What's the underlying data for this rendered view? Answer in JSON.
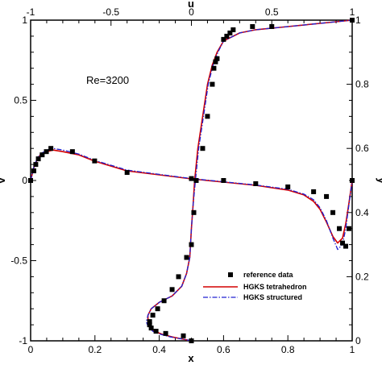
{
  "chart_data": {
    "type": "line",
    "annotation": "Re=3200",
    "axes": {
      "bottom": {
        "label": "x",
        "range": [
          0,
          1
        ],
        "ticks": [
          "0",
          "0.2",
          "0.4",
          "0.6",
          "0.8",
          "1"
        ],
        "tick_values": [
          0,
          0.2,
          0.4,
          0.6,
          0.8,
          1
        ]
      },
      "top": {
        "label": "u",
        "range": [
          -1,
          1
        ],
        "ticks": [
          "-1",
          "-0.5",
          "0",
          "0.5",
          "1"
        ],
        "tick_values": [
          -1,
          -0.5,
          0,
          0.5,
          1
        ]
      },
      "left": {
        "label": "v",
        "range": [
          -1,
          1
        ],
        "ticks": [
          "-1",
          "-0.5",
          "0",
          "0.5",
          "1"
        ],
        "tick_values": [
          -1,
          -0.5,
          0,
          0.5,
          1
        ]
      },
      "right": {
        "label": "y",
        "range": [
          0,
          1
        ],
        "ticks": [
          "0",
          "0.2",
          "0.4",
          "0.6",
          "0.8",
          "1"
        ],
        "tick_values": [
          0,
          0.2,
          0.4,
          0.6,
          0.8,
          1
        ]
      }
    },
    "legend": {
      "placement": "bottom-right",
      "entries": [
        "reference data",
        "HGKS tetrahedron",
        "HGKS structured"
      ]
    },
    "colors": {
      "tetra": "#d40000",
      "structured": "#2020d0",
      "reference": "#000000"
    },
    "series": [
      {
        "name": "reference data",
        "style": "marker",
        "group": "v_vs_x",
        "points": [
          [
            0.0,
            0.0
          ],
          [
            0.01,
            0.06
          ],
          [
            0.016,
            0.1
          ],
          [
            0.024,
            0.135
          ],
          [
            0.036,
            0.16
          ],
          [
            0.049,
            0.18
          ],
          [
            0.063,
            0.2
          ],
          [
            0.13,
            0.18
          ],
          [
            0.199,
            0.122
          ],
          [
            0.3,
            0.05
          ],
          [
            0.5,
            0.012
          ],
          [
            0.6,
            0.0
          ],
          [
            0.7,
            -0.02
          ],
          [
            0.8,
            -0.04
          ],
          [
            0.88,
            -0.07
          ],
          [
            0.92,
            -0.1
          ],
          [
            0.94,
            -0.2
          ],
          [
            0.96,
            -0.3
          ],
          [
            0.97,
            -0.39
          ],
          [
            0.98,
            -0.41
          ],
          [
            0.99,
            -0.3
          ],
          [
            1.0,
            0.0
          ]
        ]
      },
      {
        "name": "reference data",
        "style": "marker",
        "group": "u_vs_y",
        "points": [
          [
            0.0,
            0.0
          ],
          [
            -0.05,
            0.0156
          ],
          [
            -0.16,
            0.023
          ],
          [
            -0.22,
            0.03
          ],
          [
            -0.25,
            0.04
          ],
          [
            -0.26,
            0.05
          ],
          [
            -0.26,
            0.06
          ],
          [
            -0.24,
            0.08
          ],
          [
            -0.21,
            0.1
          ],
          [
            -0.17,
            0.125
          ],
          [
            -0.12,
            0.16
          ],
          [
            -0.08,
            0.2
          ],
          [
            -0.03,
            0.26
          ],
          [
            0.0,
            0.3
          ],
          [
            0.015,
            0.4
          ],
          [
            0.03,
            0.5
          ],
          [
            0.07,
            0.6
          ],
          [
            0.1,
            0.7
          ],
          [
            0.13,
            0.8
          ],
          [
            0.14,
            0.85
          ],
          [
            0.15,
            0.87
          ],
          [
            0.16,
            0.88
          ],
          [
            0.2,
            0.94
          ],
          [
            0.22,
            0.95
          ],
          [
            0.24,
            0.96
          ],
          [
            0.26,
            0.97
          ],
          [
            0.38,
            0.98
          ],
          [
            0.5,
            0.98
          ],
          [
            1.0,
            1.0
          ]
        ]
      },
      {
        "name": "HGKS tetrahedron",
        "style": "solid",
        "group": "v_vs_x",
        "points": [
          [
            0.0,
            0.0
          ],
          [
            0.01,
            0.08
          ],
          [
            0.02,
            0.13
          ],
          [
            0.03,
            0.16
          ],
          [
            0.05,
            0.18
          ],
          [
            0.07,
            0.19
          ],
          [
            0.1,
            0.18
          ],
          [
            0.15,
            0.16
          ],
          [
            0.2,
            0.12
          ],
          [
            0.3,
            0.06
          ],
          [
            0.4,
            0.035
          ],
          [
            0.5,
            0.01
          ],
          [
            0.6,
            -0.01
          ],
          [
            0.7,
            -0.03
          ],
          [
            0.8,
            -0.06
          ],
          [
            0.85,
            -0.09
          ],
          [
            0.88,
            -0.13
          ],
          [
            0.9,
            -0.18
          ],
          [
            0.92,
            -0.26
          ],
          [
            0.94,
            -0.35
          ],
          [
            0.955,
            -0.39
          ],
          [
            0.97,
            -0.36
          ],
          [
            0.98,
            -0.27
          ],
          [
            0.99,
            -0.14
          ],
          [
            1.0,
            0.0
          ]
        ]
      },
      {
        "name": "HGKS tetrahedron",
        "style": "solid",
        "group": "u_vs_y",
        "points": [
          [
            0.0,
            0.0
          ],
          [
            -0.05,
            0.005
          ],
          [
            -0.12,
            0.012
          ],
          [
            -0.18,
            0.02
          ],
          [
            -0.23,
            0.03
          ],
          [
            -0.26,
            0.045
          ],
          [
            -0.27,
            0.06
          ],
          [
            -0.27,
            0.08
          ],
          [
            -0.25,
            0.1
          ],
          [
            -0.2,
            0.12
          ],
          [
            -0.12,
            0.14
          ],
          [
            -0.06,
            0.17
          ],
          [
            -0.03,
            0.21
          ],
          [
            -0.01,
            0.26
          ],
          [
            0.0,
            0.35
          ],
          [
            0.01,
            0.42
          ],
          [
            0.02,
            0.5
          ],
          [
            0.04,
            0.6
          ],
          [
            0.07,
            0.7
          ],
          [
            0.1,
            0.8
          ],
          [
            0.13,
            0.86
          ],
          [
            0.16,
            0.9
          ],
          [
            0.2,
            0.935
          ],
          [
            0.3,
            0.96
          ],
          [
            0.4,
            0.97
          ],
          [
            0.6,
            0.98
          ],
          [
            0.8,
            0.99
          ],
          [
            1.0,
            1.0
          ]
        ]
      },
      {
        "name": "HGKS structured",
        "style": "dashdot",
        "group": "v_vs_x",
        "points": [
          [
            0.0,
            0.0
          ],
          [
            0.01,
            0.085
          ],
          [
            0.02,
            0.135
          ],
          [
            0.03,
            0.165
          ],
          [
            0.05,
            0.19
          ],
          [
            0.07,
            0.2
          ],
          [
            0.1,
            0.19
          ],
          [
            0.15,
            0.165
          ],
          [
            0.2,
            0.125
          ],
          [
            0.3,
            0.065
          ],
          [
            0.4,
            0.038
          ],
          [
            0.5,
            0.012
          ],
          [
            0.6,
            -0.008
          ],
          [
            0.7,
            -0.028
          ],
          [
            0.8,
            -0.055
          ],
          [
            0.85,
            -0.085
          ],
          [
            0.88,
            -0.12
          ],
          [
            0.9,
            -0.17
          ],
          [
            0.92,
            -0.25
          ],
          [
            0.94,
            -0.36
          ],
          [
            0.955,
            -0.43
          ],
          [
            0.97,
            -0.4
          ],
          [
            0.98,
            -0.3
          ],
          [
            0.99,
            -0.15
          ],
          [
            1.0,
            0.0
          ]
        ]
      },
      {
        "name": "HGKS structured",
        "style": "dashdot",
        "group": "u_vs_y",
        "points": [
          [
            0.0,
            0.0
          ],
          [
            -0.05,
            0.005
          ],
          [
            -0.13,
            0.012
          ],
          [
            -0.19,
            0.02
          ],
          [
            -0.24,
            0.03
          ],
          [
            -0.27,
            0.045
          ],
          [
            -0.28,
            0.06
          ],
          [
            -0.27,
            0.08
          ],
          [
            -0.25,
            0.1
          ],
          [
            -0.2,
            0.12
          ],
          [
            -0.12,
            0.14
          ],
          [
            -0.06,
            0.17
          ],
          [
            -0.03,
            0.21
          ],
          [
            -0.01,
            0.26
          ],
          [
            0.0,
            0.35
          ],
          [
            0.01,
            0.42
          ],
          [
            0.025,
            0.5
          ],
          [
            0.045,
            0.6
          ],
          [
            0.075,
            0.7
          ],
          [
            0.105,
            0.8
          ],
          [
            0.135,
            0.86
          ],
          [
            0.165,
            0.9
          ],
          [
            0.2,
            0.935
          ],
          [
            0.3,
            0.96
          ],
          [
            0.4,
            0.97
          ],
          [
            0.6,
            0.98
          ],
          [
            0.8,
            0.99
          ],
          [
            1.0,
            1.0
          ]
        ]
      }
    ]
  }
}
